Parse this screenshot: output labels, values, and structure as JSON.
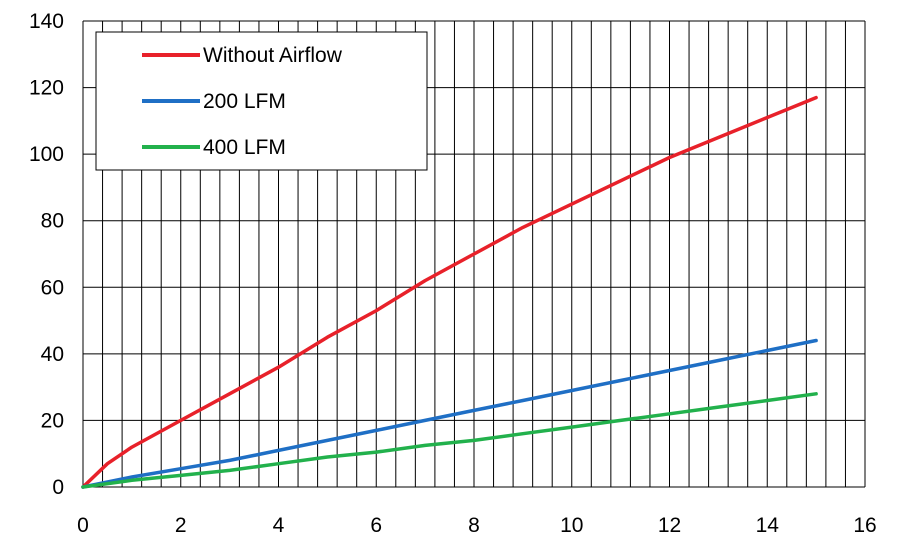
{
  "chart_data": {
    "type": "line",
    "title": "",
    "xlabel": "",
    "ylabel": "",
    "xlim": [
      0,
      16
    ],
    "ylim": [
      0,
      140
    ],
    "x_ticks": [
      0,
      2,
      4,
      6,
      8,
      10,
      12,
      14,
      16
    ],
    "y_ticks": [
      0,
      20,
      40,
      60,
      80,
      100,
      120,
      140
    ],
    "grid": {
      "vertical_step": 0.4,
      "horizontal_step": 20
    },
    "legend_position": "top-left",
    "series": [
      {
        "name": "Without Airflow",
        "color": "#e8212a",
        "points": [
          [
            0,
            0
          ],
          [
            0.5,
            7
          ],
          [
            1,
            12
          ],
          [
            2,
            20
          ],
          [
            3,
            28
          ],
          [
            4,
            36
          ],
          [
            5,
            45
          ],
          [
            6,
            53
          ],
          [
            7,
            62
          ],
          [
            8,
            70
          ],
          [
            9,
            78
          ],
          [
            10,
            85
          ],
          [
            11,
            92
          ],
          [
            12,
            99
          ],
          [
            13,
            105
          ],
          [
            14,
            111
          ],
          [
            15,
            117
          ]
        ]
      },
      {
        "name": "200 LFM",
        "color": "#1f6fc5",
        "points": [
          [
            0,
            0
          ],
          [
            1,
            3
          ],
          [
            2,
            5.5
          ],
          [
            3,
            8
          ],
          [
            4,
            11
          ],
          [
            5,
            14
          ],
          [
            6,
            17
          ],
          [
            7,
            20
          ],
          [
            8,
            23
          ],
          [
            9,
            26
          ],
          [
            10,
            29
          ],
          [
            11,
            32
          ],
          [
            12,
            35
          ],
          [
            13,
            38
          ],
          [
            14,
            41
          ],
          [
            15,
            44
          ]
        ]
      },
      {
        "name": "400 LFM",
        "color": "#22b14c",
        "points": [
          [
            0,
            0
          ],
          [
            1,
            2
          ],
          [
            2,
            3.5
          ],
          [
            3,
            5
          ],
          [
            4,
            7
          ],
          [
            5,
            9
          ],
          [
            6,
            10.5
          ],
          [
            7,
            12.5
          ],
          [
            8,
            14
          ],
          [
            9,
            16
          ],
          [
            10,
            18
          ],
          [
            11,
            20
          ],
          [
            12,
            22
          ],
          [
            13,
            24
          ],
          [
            14,
            26
          ],
          [
            15,
            28
          ]
        ]
      }
    ]
  }
}
